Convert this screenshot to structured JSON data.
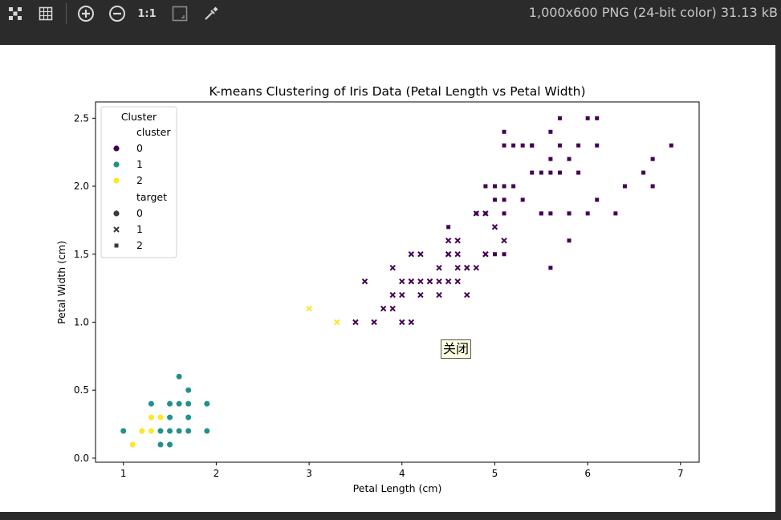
{
  "toolbar": {
    "icons": [
      "checker-icon",
      "grid-icon",
      "zoom-in-icon",
      "zoom-out-icon",
      "actual-size-icon",
      "fit-icon",
      "eyedropper-icon"
    ],
    "actual_size_label": "1:1",
    "image_info": "1,000x600 PNG (24-bit color) 31.13 kB"
  },
  "tooltip": {
    "label": "关闭"
  },
  "colors": {
    "cluster0": "#440154",
    "cluster1": "#21918c",
    "cluster2": "#fde725"
  },
  "chart_data": {
    "type": "scatter",
    "title": "K-means Clustering of Iris Data (Petal Length vs Petal Width)",
    "xlabel": "Petal Length (cm)",
    "ylabel": "Petal Width (cm)",
    "xlim": [
      0.7,
      7.2
    ],
    "ylim": [
      -0.03,
      2.62
    ],
    "xticks": [
      1,
      2,
      3,
      4,
      5,
      6,
      7
    ],
    "yticks": [
      0.0,
      0.5,
      1.0,
      1.5,
      2.0,
      2.5
    ],
    "xtick_labels": [
      "1",
      "2",
      "3",
      "4",
      "5",
      "6",
      "7"
    ],
    "ytick_labels": [
      "0.0",
      "0.5",
      "1.0",
      "1.5",
      "2.0",
      "2.5"
    ],
    "grid": false,
    "legend": {
      "title": "Cluster",
      "placement": "upper-left",
      "cluster_header": "cluster",
      "clusters": [
        {
          "label": "0"
        },
        {
          "label": "1"
        },
        {
          "label": "2"
        }
      ],
      "target_header": "target",
      "targets": [
        {
          "label": "0",
          "marker": "circle"
        },
        {
          "label": "1",
          "marker": "x"
        },
        {
          "label": "2",
          "marker": "square"
        }
      ]
    },
    "points": [
      [
        1.4,
        0.2,
        1,
        0
      ],
      [
        1.3,
        0.2,
        2,
        0
      ],
      [
        1.5,
        0.2,
        1,
        0
      ],
      [
        1.7,
        0.4,
        1,
        0
      ],
      [
        1.4,
        0.3,
        1,
        0
      ],
      [
        1.5,
        0.1,
        1,
        0
      ],
      [
        1.6,
        0.2,
        1,
        0
      ],
      [
        1.4,
        0.1,
        1,
        0
      ],
      [
        1.1,
        0.1,
        2,
        0
      ],
      [
        1.2,
        0.2,
        2,
        0
      ],
      [
        1.5,
        0.4,
        1,
        0
      ],
      [
        1.3,
        0.4,
        1,
        0
      ],
      [
        1.7,
        0.3,
        1,
        0
      ],
      [
        1.5,
        0.3,
        1,
        0
      ],
      [
        1.0,
        0.2,
        1,
        0
      ],
      [
        1.7,
        0.5,
        1,
        0
      ],
      [
        1.9,
        0.2,
        1,
        0
      ],
      [
        1.6,
        0.4,
        1,
        0
      ],
      [
        1.9,
        0.4,
        1,
        0
      ],
      [
        1.6,
        0.6,
        1,
        0
      ],
      [
        1.3,
        0.3,
        2,
        0
      ],
      [
        1.4,
        0.3,
        2,
        0
      ],
      [
        1.7,
        0.2,
        1,
        0
      ],
      [
        1.6,
        0.2,
        1,
        0
      ],
      [
        4.7,
        1.4,
        0,
        1
      ],
      [
        4.5,
        1.5,
        0,
        1
      ],
      [
        4.9,
        1.5,
        0,
        1
      ],
      [
        4.0,
        1.3,
        0,
        1
      ],
      [
        4.6,
        1.5,
        0,
        1
      ],
      [
        3.3,
        1.0,
        2,
        1
      ],
      [
        4.6,
        1.3,
        0,
        1
      ],
      [
        3.9,
        1.4,
        0,
        1
      ],
      [
        3.5,
        1.0,
        0,
        1
      ],
      [
        4.2,
        1.5,
        0,
        1
      ],
      [
        4.0,
        1.0,
        0,
        1
      ],
      [
        4.7,
        1.4,
        0,
        1
      ],
      [
        3.6,
        1.3,
        0,
        1
      ],
      [
        4.4,
        1.4,
        0,
        1
      ],
      [
        4.5,
        1.5,
        0,
        1
      ],
      [
        4.1,
        1.0,
        0,
        1
      ],
      [
        3.9,
        1.1,
        0,
        1
      ],
      [
        4.8,
        1.8,
        0,
        1
      ],
      [
        4.9,
        1.5,
        0,
        1
      ],
      [
        4.7,
        1.2,
        0,
        1
      ],
      [
        4.3,
        1.3,
        0,
        1
      ],
      [
        5.0,
        1.7,
        0,
        1
      ],
      [
        3.8,
        1.1,
        0,
        1
      ],
      [
        3.7,
        1.0,
        0,
        1
      ],
      [
        5.1,
        1.6,
        0,
        1
      ],
      [
        4.5,
        1.6,
        0,
        1
      ],
      [
        4.4,
        1.3,
        0,
        1
      ],
      [
        4.1,
        1.3,
        0,
        1
      ],
      [
        4.0,
        1.2,
        0,
        1
      ],
      [
        4.4,
        1.2,
        0,
        1
      ],
      [
        4.6,
        1.4,
        0,
        1
      ],
      [
        4.2,
        1.2,
        0,
        1
      ],
      [
        4.2,
        1.3,
        0,
        1
      ],
      [
        4.3,
        1.3,
        0,
        1
      ],
      [
        3.0,
        1.1,
        2,
        1
      ],
      [
        4.1,
        1.3,
        0,
        1
      ],
      [
        3.9,
        1.2,
        0,
        1
      ],
      [
        4.5,
        1.3,
        0,
        1
      ],
      [
        4.8,
        1.4,
        0,
        1
      ],
      [
        4.6,
        1.6,
        0,
        1
      ],
      [
        4.9,
        1.8,
        0,
        1
      ],
      [
        4.1,
        1.5,
        0,
        1
      ],
      [
        6.0,
        2.5,
        0,
        2
      ],
      [
        5.1,
        1.9,
        0,
        2
      ],
      [
        5.9,
        2.1,
        0,
        2
      ],
      [
        5.6,
        1.8,
        0,
        2
      ],
      [
        5.8,
        2.2,
        0,
        2
      ],
      [
        6.6,
        2.1,
        0,
        2
      ],
      [
        4.5,
        1.7,
        0,
        2
      ],
      [
        6.3,
        1.8,
        0,
        2
      ],
      [
        5.8,
        1.8,
        0,
        2
      ],
      [
        6.1,
        2.5,
        0,
        2
      ],
      [
        5.1,
        2.0,
        0,
        2
      ],
      [
        5.3,
        1.9,
        0,
        2
      ],
      [
        5.5,
        2.1,
        0,
        2
      ],
      [
        5.0,
        2.0,
        0,
        2
      ],
      [
        5.1,
        2.4,
        0,
        2
      ],
      [
        5.3,
        2.3,
        0,
        2
      ],
      [
        5.5,
        1.8,
        0,
        2
      ],
      [
        6.7,
        2.2,
        0,
        2
      ],
      [
        6.9,
        2.3,
        0,
        2
      ],
      [
        5.0,
        1.5,
        0,
        2
      ],
      [
        5.7,
        2.3,
        0,
        2
      ],
      [
        4.9,
        2.0,
        0,
        2
      ],
      [
        6.7,
        2.0,
        0,
        2
      ],
      [
        4.9,
        1.8,
        0,
        2
      ],
      [
        5.7,
        2.1,
        0,
        2
      ],
      [
        6.0,
        1.8,
        0,
        2
      ],
      [
        4.8,
        1.8,
        0,
        2
      ],
      [
        5.6,
        2.1,
        0,
        2
      ],
      [
        5.8,
        1.6,
        0,
        2
      ],
      [
        6.1,
        1.9,
        0,
        2
      ],
      [
        6.4,
        2.0,
        0,
        2
      ],
      [
        5.6,
        2.2,
        0,
        2
      ],
      [
        5.1,
        1.5,
        0,
        2
      ],
      [
        5.6,
        1.4,
        0,
        2
      ],
      [
        6.1,
        2.3,
        0,
        2
      ],
      [
        5.6,
        2.4,
        0,
        2
      ],
      [
        5.5,
        1.8,
        0,
        2
      ],
      [
        5.4,
        2.1,
        0,
        2
      ],
      [
        5.4,
        2.3,
        0,
        2
      ],
      [
        5.1,
        2.3,
        0,
        2
      ],
      [
        5.9,
        2.3,
        0,
        2
      ],
      [
        5.7,
        2.5,
        0,
        2
      ],
      [
        5.2,
        2.3,
        0,
        2
      ],
      [
        5.0,
        1.9,
        0,
        2
      ],
      [
        5.2,
        2.0,
        0,
        2
      ],
      [
        5.1,
        1.8,
        0,
        2
      ],
      [
        5.4,
        2.3,
        0,
        2
      ],
      [
        5.8,
        1.8,
        0,
        2
      ]
    ]
  }
}
